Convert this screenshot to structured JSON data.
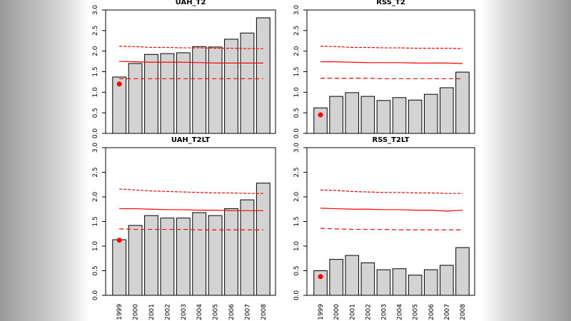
{
  "chart_data": [
    {
      "type": "bar",
      "title": "UAH_T2",
      "values": [
        1.37,
        1.7,
        1.92,
        1.94,
        1.96,
        2.11,
        2.1,
        2.29,
        2.44,
        2.81
      ],
      "color": "#d3d3d3",
      "marker": {
        "color": "#ff0000",
        "values": [
          1.2,
          null,
          null,
          null,
          null,
          null,
          null,
          null,
          null,
          null
        ]
      },
      "lines": [
        {
          "color": "#ff0000",
          "style": "solid",
          "values": [
            1.75,
            1.74,
            1.73,
            1.73,
            1.73,
            1.72,
            1.71,
            1.71,
            1.71,
            1.71
          ]
        },
        {
          "color": "#ff0000",
          "style": "dotted",
          "values": [
            2.12,
            2.11,
            2.09,
            2.09,
            2.08,
            2.08,
            2.07,
            2.07,
            2.06,
            2.06
          ]
        },
        {
          "color": "#ff0000",
          "style": "dashed",
          "values": [
            1.33,
            1.33,
            1.33,
            1.33,
            1.33,
            1.33,
            1.33,
            1.33,
            1.33,
            1.33
          ]
        }
      ],
      "ylim": [
        0,
        3
      ],
      "yticks": [
        {
          "value": 0,
          "label": "0.0"
        },
        0.5,
        {
          "value": 1,
          "label": "1.0"
        },
        1.5,
        {
          "value": 2,
          "label": "2.0"
        },
        2.5,
        {
          "value": 3,
          "label": "3.0"
        }
      ]
    },
    {
      "type": "bar",
      "title": "RSS_T2",
      "values": [
        0.62,
        0.9,
        0.99,
        0.9,
        0.8,
        0.87,
        0.81,
        0.95,
        1.11,
        1.49
      ],
      "color": "#d3d3d3",
      "marker": {
        "color": "#ff0000",
        "values": [
          0.45,
          null,
          null,
          null,
          null,
          null,
          null,
          null,
          null,
          null
        ]
      },
      "lines": [
        {
          "color": "#ff0000",
          "style": "solid",
          "values": [
            1.74,
            1.74,
            1.73,
            1.72,
            1.72,
            1.72,
            1.71,
            1.71,
            1.71,
            1.7
          ]
        },
        {
          "color": "#ff0000",
          "style": "dotted",
          "values": [
            2.12,
            2.11,
            2.09,
            2.09,
            2.08,
            2.08,
            2.07,
            2.07,
            2.07,
            2.06
          ]
        },
        {
          "color": "#ff0000",
          "style": "dashed",
          "values": [
            1.34,
            1.34,
            1.34,
            1.34,
            1.33,
            1.33,
            1.33,
            1.33,
            1.33,
            1.33
          ]
        }
      ],
      "ylim": [
        0,
        3
      ],
      "yticks": [
        {
          "value": 0,
          "label": "0.0"
        },
        0.5,
        {
          "value": 1,
          "label": "1.0"
        },
        1.5,
        {
          "value": 2,
          "label": "2.0"
        },
        2.5,
        {
          "value": 3,
          "label": "3.0"
        }
      ]
    },
    {
      "type": "bar",
      "title": "UAH_T2LT",
      "categories": [
        "1999",
        "2000",
        "2001",
        "2002",
        "2003",
        "2004",
        "2005",
        "2006",
        "2007",
        "2008"
      ],
      "values": [
        1.13,
        1.42,
        1.62,
        1.57,
        1.57,
        1.68,
        1.62,
        1.76,
        1.94,
        2.28
      ],
      "color": "#d3d3d3",
      "marker": {
        "color": "#ff0000",
        "values": [
          1.12,
          null,
          null,
          null,
          null,
          null,
          null,
          null,
          null,
          null
        ]
      },
      "lines": [
        {
          "color": "#ff0000",
          "style": "solid",
          "values": [
            1.76,
            1.76,
            1.75,
            1.74,
            1.74,
            1.73,
            1.73,
            1.72,
            1.72,
            1.72
          ]
        },
        {
          "color": "#ff0000",
          "style": "dotted",
          "values": [
            2.16,
            2.14,
            2.12,
            2.11,
            2.1,
            2.09,
            2.08,
            2.08,
            2.07,
            2.07
          ]
        },
        {
          "color": "#ff0000",
          "style": "dashed",
          "values": [
            1.35,
            1.34,
            1.34,
            1.34,
            1.34,
            1.33,
            1.33,
            1.33,
            1.33,
            1.33
          ]
        }
      ],
      "ylim": [
        0,
        3
      ],
      "yticks": [
        {
          "value": 0,
          "label": "0.0"
        },
        0.5,
        {
          "value": 1,
          "label": "1.0"
        },
        1.5,
        {
          "value": 2,
          "label": "2.0"
        },
        2.5,
        {
          "value": 3,
          "label": "3.0"
        }
      ]
    },
    {
      "type": "bar",
      "title": "RSS_T2LT",
      "categories": [
        "1999",
        "2000",
        "2001",
        "2002",
        "2003",
        "2004",
        "2005",
        "2006",
        "2007",
        "2008"
      ],
      "values": [
        0.5,
        0.73,
        0.81,
        0.66,
        0.52,
        0.54,
        0.41,
        0.52,
        0.61,
        0.97
      ],
      "color": "#d3d3d3",
      "marker": {
        "color": "#ff0000",
        "values": [
          0.38,
          null,
          null,
          null,
          null,
          null,
          null,
          null,
          null,
          null
        ]
      },
      "lines": [
        {
          "color": "#ff0000",
          "style": "solid",
          "values": [
            1.77,
            1.76,
            1.75,
            1.75,
            1.74,
            1.74,
            1.73,
            1.73,
            1.71,
            1.73
          ]
        },
        {
          "color": "#ff0000",
          "style": "dotted",
          "values": [
            2.14,
            2.13,
            2.11,
            2.1,
            2.09,
            2.09,
            2.08,
            2.08,
            2.07,
            2.07
          ]
        },
        {
          "color": "#ff0000",
          "style": "dashed",
          "values": [
            1.36,
            1.35,
            1.34,
            1.34,
            1.34,
            1.33,
            1.33,
            1.33,
            1.33,
            1.33
          ]
        }
      ],
      "ylim": [
        0,
        3
      ],
      "yticks": [
        {
          "value": 0,
          "label": "0.0"
        },
        0.5,
        {
          "value": 1,
          "label": "1.0"
        },
        1.5,
        {
          "value": 2,
          "label": "2.0"
        },
        2.5,
        {
          "value": 3,
          "label": "3.0"
        }
      ]
    }
  ]
}
